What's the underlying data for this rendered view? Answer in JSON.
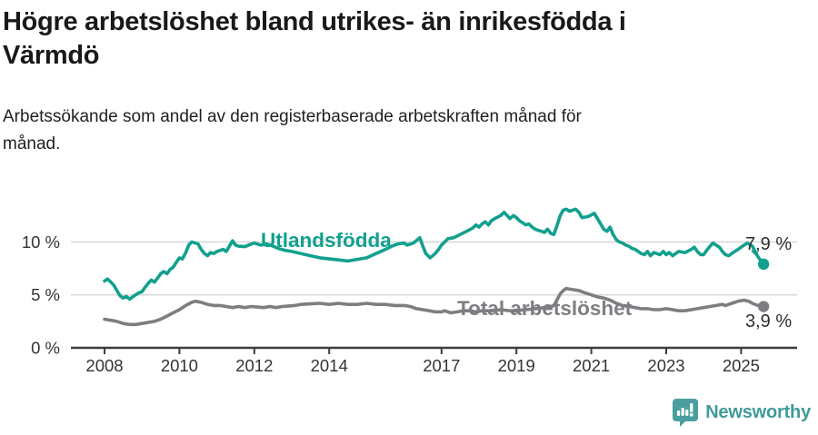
{
  "header": {
    "title_line1": "Högre arbetslöshet bland utrikes- än inrikesfödda i",
    "title_line2": "Värmdö",
    "subtitle_line1": "Arbetssökande som andel av den registerbaserade arbetskraften månad för",
    "subtitle_line2": "månad."
  },
  "footer": {
    "brand": "Newsworthy"
  },
  "colors": {
    "foreign_born_line": "#12a08e",
    "total_line": "#7e7e82",
    "grid": "#d9d9d9",
    "axis": "#3c3c3c",
    "tick_text": "#333333",
    "value_text": "#2e2e2e",
    "logo_teal": "#4a9f9e"
  },
  "chart_data": {
    "type": "line",
    "title": "Högre arbetslöshet bland utrikes- än inrikesfödda i Värmdö",
    "subtitle": "Arbetssökande som andel av den registerbaserade arbetskraften månad för månad.",
    "unit": "%",
    "grid": "horizontal-only",
    "legend": "inline-labels",
    "x_axis": {
      "range": [
        2008,
        2026.5
      ],
      "ticks": [
        "2008",
        "2010",
        "2012",
        "2014",
        "2017",
        "2019",
        "2021",
        "2023",
        "2025"
      ],
      "tick_years": [
        2008,
        2010,
        2012,
        2014,
        2017,
        2019,
        2021,
        2023,
        2025
      ]
    },
    "y_axis": {
      "range": [
        0,
        14.8
      ],
      "ticks": [
        {
          "value": 0,
          "label": "0 %"
        },
        {
          "value": 5,
          "label": "5 %"
        },
        {
          "value": 10,
          "label": "10 %"
        }
      ]
    },
    "series": [
      {
        "name": "Utlandsfödda",
        "color": "#12a08e",
        "end_label": "7,9 %",
        "end_value": 7.9,
        "points": [
          [
            2008.0,
            6.3
          ],
          [
            2008.08,
            6.5
          ],
          [
            2008.17,
            6.2
          ],
          [
            2008.25,
            5.9
          ],
          [
            2008.33,
            5.4
          ],
          [
            2008.42,
            4.9
          ],
          [
            2008.5,
            4.7
          ],
          [
            2008.58,
            4.85
          ],
          [
            2008.67,
            4.6
          ],
          [
            2008.75,
            4.8
          ],
          [
            2008.83,
            5.0
          ],
          [
            2008.92,
            5.2
          ],
          [
            2009.0,
            5.3
          ],
          [
            2009.08,
            5.7
          ],
          [
            2009.17,
            6.1
          ],
          [
            2009.25,
            6.4
          ],
          [
            2009.33,
            6.2
          ],
          [
            2009.42,
            6.6
          ],
          [
            2009.5,
            7.0
          ],
          [
            2009.58,
            7.2
          ],
          [
            2009.67,
            7.0
          ],
          [
            2009.75,
            7.4
          ],
          [
            2009.83,
            7.6
          ],
          [
            2009.92,
            8.1
          ],
          [
            2010.0,
            8.5
          ],
          [
            2010.08,
            8.4
          ],
          [
            2010.17,
            9.0
          ],
          [
            2010.25,
            9.7
          ],
          [
            2010.33,
            10.0
          ],
          [
            2010.42,
            9.9
          ],
          [
            2010.5,
            9.8
          ],
          [
            2010.58,
            9.3
          ],
          [
            2010.67,
            8.9
          ],
          [
            2010.75,
            8.7
          ],
          [
            2010.83,
            9.0
          ],
          [
            2010.92,
            8.9
          ],
          [
            2011.0,
            9.1
          ],
          [
            2011.17,
            9.3
          ],
          [
            2011.25,
            9.1
          ],
          [
            2011.42,
            10.1
          ],
          [
            2011.5,
            9.7
          ],
          [
            2011.58,
            9.6
          ],
          [
            2011.75,
            9.55
          ],
          [
            2011.92,
            9.8
          ],
          [
            2012.0,
            9.9
          ],
          [
            2012.17,
            9.7
          ],
          [
            2012.33,
            9.8
          ],
          [
            2012.5,
            9.6
          ],
          [
            2012.67,
            9.35
          ],
          [
            2012.83,
            9.2
          ],
          [
            2013.0,
            9.1
          ],
          [
            2013.25,
            8.9
          ],
          [
            2013.5,
            8.7
          ],
          [
            2013.75,
            8.5
          ],
          [
            2014.0,
            8.4
          ],
          [
            2014.25,
            8.3
          ],
          [
            2014.5,
            8.2
          ],
          [
            2014.75,
            8.35
          ],
          [
            2015.0,
            8.5
          ],
          [
            2015.25,
            8.9
          ],
          [
            2015.5,
            9.3
          ],
          [
            2015.67,
            9.6
          ],
          [
            2015.83,
            9.8
          ],
          [
            2016.0,
            9.9
          ],
          [
            2016.08,
            9.7
          ],
          [
            2016.25,
            9.9
          ],
          [
            2016.42,
            10.4
          ],
          [
            2016.5,
            9.6
          ],
          [
            2016.58,
            8.9
          ],
          [
            2016.7,
            8.5
          ],
          [
            2016.83,
            8.9
          ],
          [
            2016.92,
            9.3
          ],
          [
            2017.0,
            9.7
          ],
          [
            2017.17,
            10.3
          ],
          [
            2017.33,
            10.4
          ],
          [
            2017.5,
            10.7
          ],
          [
            2017.67,
            11.0
          ],
          [
            2017.83,
            11.3
          ],
          [
            2017.92,
            11.6
          ],
          [
            2018.0,
            11.4
          ],
          [
            2018.08,
            11.7
          ],
          [
            2018.17,
            11.9
          ],
          [
            2018.25,
            11.6
          ],
          [
            2018.33,
            12.0
          ],
          [
            2018.42,
            12.2
          ],
          [
            2018.58,
            12.5
          ],
          [
            2018.67,
            12.8
          ],
          [
            2018.75,
            12.5
          ],
          [
            2018.83,
            12.2
          ],
          [
            2018.92,
            12.5
          ],
          [
            2019.0,
            12.3
          ],
          [
            2019.08,
            12.0
          ],
          [
            2019.17,
            11.8
          ],
          [
            2019.25,
            11.6
          ],
          [
            2019.33,
            11.7
          ],
          [
            2019.42,
            11.4
          ],
          [
            2019.5,
            11.2
          ],
          [
            2019.58,
            11.1
          ],
          [
            2019.67,
            11.0
          ],
          [
            2019.75,
            10.9
          ],
          [
            2019.83,
            11.2
          ],
          [
            2019.92,
            10.8
          ],
          [
            2020.0,
            10.7
          ],
          [
            2020.08,
            11.5
          ],
          [
            2020.17,
            12.5
          ],
          [
            2020.25,
            13.0
          ],
          [
            2020.33,
            13.1
          ],
          [
            2020.42,
            12.9
          ],
          [
            2020.5,
            13.0
          ],
          [
            2020.58,
            13.1
          ],
          [
            2020.67,
            12.8
          ],
          [
            2020.75,
            12.3
          ],
          [
            2020.92,
            12.4
          ],
          [
            2021.08,
            12.7
          ],
          [
            2021.25,
            11.7
          ],
          [
            2021.33,
            11.2
          ],
          [
            2021.42,
            11.0
          ],
          [
            2021.5,
            11.4
          ],
          [
            2021.58,
            10.7
          ],
          [
            2021.67,
            10.2
          ],
          [
            2021.75,
            10.0
          ],
          [
            2021.83,
            9.9
          ],
          [
            2021.92,
            9.7
          ],
          [
            2022.0,
            9.6
          ],
          [
            2022.08,
            9.4
          ],
          [
            2022.17,
            9.3
          ],
          [
            2022.25,
            9.1
          ],
          [
            2022.33,
            8.9
          ],
          [
            2022.42,
            8.8
          ],
          [
            2022.5,
            9.1
          ],
          [
            2022.58,
            8.7
          ],
          [
            2022.67,
            9.0
          ],
          [
            2022.83,
            8.8
          ],
          [
            2022.92,
            9.1
          ],
          [
            2023.0,
            8.8
          ],
          [
            2023.08,
            9.0
          ],
          [
            2023.17,
            8.7
          ],
          [
            2023.33,
            9.1
          ],
          [
            2023.5,
            9.0
          ],
          [
            2023.67,
            9.3
          ],
          [
            2023.75,
            9.5
          ],
          [
            2023.83,
            9.1
          ],
          [
            2023.92,
            8.8
          ],
          [
            2024.0,
            8.8
          ],
          [
            2024.08,
            9.2
          ],
          [
            2024.17,
            9.6
          ],
          [
            2024.25,
            9.9
          ],
          [
            2024.33,
            9.7
          ],
          [
            2024.42,
            9.5
          ],
          [
            2024.5,
            9.1
          ],
          [
            2024.58,
            8.8
          ],
          [
            2024.67,
            8.7
          ],
          [
            2024.75,
            8.9
          ],
          [
            2024.83,
            9.1
          ],
          [
            2024.92,
            9.3
          ],
          [
            2025.0,
            9.5
          ],
          [
            2025.08,
            9.7
          ],
          [
            2025.17,
            9.9
          ],
          [
            2025.3,
            9.6
          ],
          [
            2025.45,
            8.6
          ],
          [
            2025.6,
            7.9
          ]
        ]
      },
      {
        "name": "Total arbetslöshet",
        "color": "#7e7e82",
        "end_label": "3,9 %",
        "end_value": 3.9,
        "points": [
          [
            2008.0,
            2.7
          ],
          [
            2008.17,
            2.6
          ],
          [
            2008.33,
            2.5
          ],
          [
            2008.5,
            2.3
          ],
          [
            2008.67,
            2.2
          ],
          [
            2008.83,
            2.2
          ],
          [
            2009.0,
            2.3
          ],
          [
            2009.17,
            2.4
          ],
          [
            2009.33,
            2.5
          ],
          [
            2009.5,
            2.7
          ],
          [
            2009.67,
            3.0
          ],
          [
            2009.83,
            3.3
          ],
          [
            2010.0,
            3.6
          ],
          [
            2010.17,
            4.0
          ],
          [
            2010.33,
            4.3
          ],
          [
            2010.42,
            4.4
          ],
          [
            2010.58,
            4.3
          ],
          [
            2010.75,
            4.1
          ],
          [
            2010.92,
            4.0
          ],
          [
            2011.08,
            4.0
          ],
          [
            2011.25,
            3.9
          ],
          [
            2011.42,
            3.8
          ],
          [
            2011.58,
            3.9
          ],
          [
            2011.75,
            3.8
          ],
          [
            2011.92,
            3.9
          ],
          [
            2012.08,
            3.85
          ],
          [
            2012.25,
            3.8
          ],
          [
            2012.42,
            3.9
          ],
          [
            2012.58,
            3.8
          ],
          [
            2012.75,
            3.9
          ],
          [
            2012.92,
            3.95
          ],
          [
            2013.08,
            4.0
          ],
          [
            2013.25,
            4.1
          ],
          [
            2013.5,
            4.15
          ],
          [
            2013.75,
            4.2
          ],
          [
            2014.0,
            4.1
          ],
          [
            2014.25,
            4.2
          ],
          [
            2014.5,
            4.1
          ],
          [
            2014.75,
            4.1
          ],
          [
            2015.0,
            4.2
          ],
          [
            2015.25,
            4.1
          ],
          [
            2015.5,
            4.1
          ],
          [
            2015.75,
            4.0
          ],
          [
            2016.0,
            4.0
          ],
          [
            2016.17,
            3.9
          ],
          [
            2016.33,
            3.7
          ],
          [
            2016.5,
            3.6
          ],
          [
            2016.67,
            3.5
          ],
          [
            2016.83,
            3.4
          ],
          [
            2017.0,
            3.4
          ],
          [
            2017.08,
            3.5
          ],
          [
            2017.25,
            3.3
          ],
          [
            2017.42,
            3.4
          ],
          [
            2017.58,
            3.5
          ],
          [
            2017.75,
            3.5
          ],
          [
            2017.92,
            3.4
          ],
          [
            2018.08,
            3.5
          ],
          [
            2018.33,
            3.5
          ],
          [
            2018.58,
            3.6
          ],
          [
            2018.83,
            3.5
          ],
          [
            2019.0,
            3.5
          ],
          [
            2019.25,
            3.6
          ],
          [
            2019.5,
            3.7
          ],
          [
            2019.75,
            3.8
          ],
          [
            2019.92,
            3.9
          ],
          [
            2020.0,
            4.0
          ],
          [
            2020.08,
            4.5
          ],
          [
            2020.17,
            5.1
          ],
          [
            2020.25,
            5.4
          ],
          [
            2020.33,
            5.6
          ],
          [
            2020.5,
            5.5
          ],
          [
            2020.67,
            5.4
          ],
          [
            2020.83,
            5.2
          ],
          [
            2021.0,
            5.0
          ],
          [
            2021.17,
            4.8
          ],
          [
            2021.33,
            4.7
          ],
          [
            2021.5,
            4.5
          ],
          [
            2021.67,
            4.2
          ],
          [
            2021.83,
            4.0
          ],
          [
            2022.0,
            3.9
          ],
          [
            2022.17,
            3.8
          ],
          [
            2022.33,
            3.7
          ],
          [
            2022.5,
            3.7
          ],
          [
            2022.67,
            3.6
          ],
          [
            2022.83,
            3.6
          ],
          [
            2023.0,
            3.7
          ],
          [
            2023.17,
            3.6
          ],
          [
            2023.33,
            3.5
          ],
          [
            2023.5,
            3.5
          ],
          [
            2023.67,
            3.6
          ],
          [
            2023.83,
            3.7
          ],
          [
            2024.0,
            3.8
          ],
          [
            2024.17,
            3.9
          ],
          [
            2024.33,
            4.0
          ],
          [
            2024.5,
            4.1
          ],
          [
            2024.58,
            4.0
          ],
          [
            2024.75,
            4.2
          ],
          [
            2024.92,
            4.4
          ],
          [
            2025.08,
            4.5
          ],
          [
            2025.2,
            4.4
          ],
          [
            2025.3,
            4.2
          ],
          [
            2025.45,
            4.0
          ],
          [
            2025.6,
            3.9
          ]
        ]
      }
    ]
  }
}
